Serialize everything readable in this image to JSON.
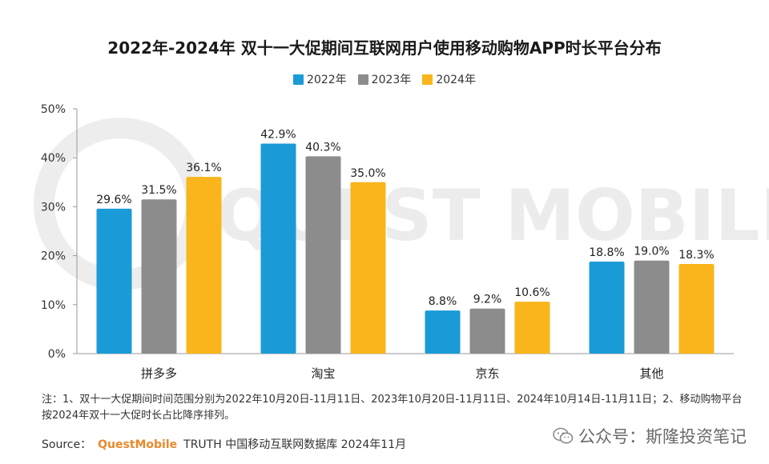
{
  "chart_data": {
    "type": "bar",
    "title": "2022年-2024年 双十一大促期间互联网用户使用移动购物APP时长平台分布",
    "categories": [
      "拼多多",
      "淘宝",
      "京东",
      "其他"
    ],
    "series": [
      {
        "name": "2022年",
        "values": [
          29.6,
          42.9,
          8.8,
          18.8
        ],
        "color": "#1a9bd7"
      },
      {
        "name": "2023年",
        "values": [
          31.5,
          40.3,
          9.2,
          19.0
        ],
        "color": "#8c8c8c"
      },
      {
        "name": "2024年",
        "values": [
          36.1,
          35.0,
          10.6,
          18.3
        ],
        "color": "#f9b51b"
      }
    ],
    "ylim": [
      0,
      50
    ],
    "yticks": [
      "0%",
      "10%",
      "20%",
      "30%",
      "40%",
      "50%"
    ],
    "value_suffix": "%",
    "legend_position": "top",
    "grid": false
  },
  "notes": "注：1、双十一大促期间时间范围分别为2022年10月20日-11月11日、2023年10月20日-11月11日、2024年10月14日-11月11日；2、移动购物平台按2024年双十一大促时长占比降序排列。",
  "source": {
    "label": "Source：",
    "brand": "QuestMobile",
    "text": "TRUTH 中国移动互联网数据库 2024年11月"
  },
  "watermark": {
    "text": "公众号：斯隆投资笔记",
    "icon": "wechat-icon"
  },
  "background_watermark": "QUEST MOBILE"
}
